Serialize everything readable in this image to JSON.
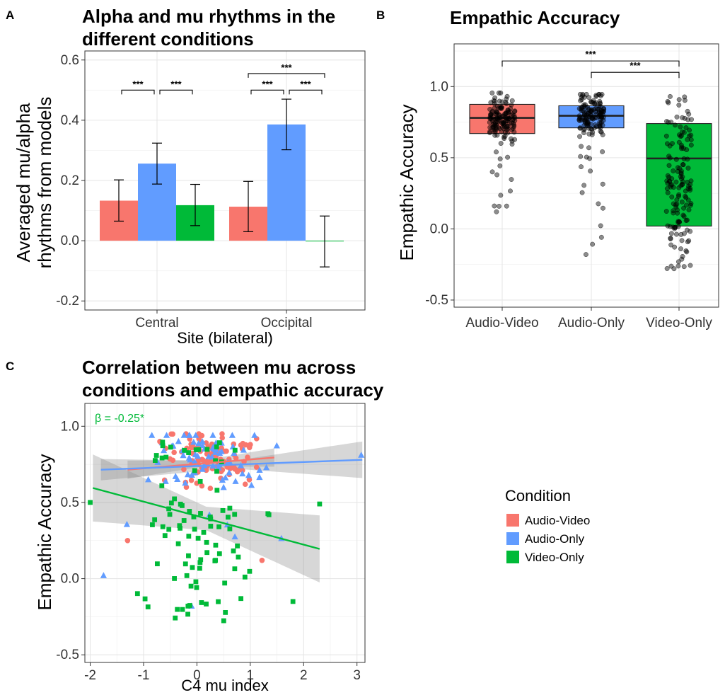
{
  "condition_colors": {
    "Audio-Video": "#F8766D",
    "Audio-Only": "#619CFF",
    "Video-Only": "#00BA38"
  },
  "legend": {
    "title": "Condition",
    "items": [
      "Audio-Video",
      "Audio-Only",
      "Video-Only"
    ]
  },
  "chart_data": [
    {
      "panel": "A",
      "type": "bar",
      "title_lines": [
        "Alpha and mu rhythms in the",
        "different conditions"
      ],
      "xlabel": "Site (bilateral)",
      "ylabel_lines": [
        "Averaged mu/alpha",
        "rhythms from models"
      ],
      "categories": [
        "Central",
        "Occipital"
      ],
      "ylim": [
        -0.23,
        0.63
      ],
      "yticks": [
        -0.2,
        0.0,
        0.2,
        0.4,
        0.6
      ],
      "ytick_labels": [
        "-0.2",
        "0.0",
        "0.2",
        "0.4",
        "0.6"
      ],
      "grid": true,
      "series": [
        {
          "name": "Audio-Video",
          "values": [
            0.133,
            0.113
          ],
          "err_low": [
            0.065,
            0.03
          ],
          "err_high": [
            0.202,
            0.197
          ]
        },
        {
          "name": "Audio-Only",
          "values": [
            0.256,
            0.386
          ],
          "err_low": [
            0.188,
            0.302
          ],
          "err_high": [
            0.324,
            0.47
          ]
        },
        {
          "name": "Video-Only",
          "values": [
            0.118,
            -0.002
          ],
          "err_low": [
            0.05,
            -0.087
          ],
          "err_high": [
            0.187,
            0.082
          ]
        }
      ],
      "significance": [
        {
          "category": 0,
          "from": 0,
          "to": 1,
          "label": "***",
          "y": 0.5
        },
        {
          "category": 0,
          "from": 1,
          "to": 2,
          "label": "***",
          "y": 0.5
        },
        {
          "category": 1,
          "from": 0,
          "to": 1,
          "label": "***",
          "y": 0.5
        },
        {
          "category": 1,
          "from": 1,
          "to": 2,
          "label": "***",
          "y": 0.5
        },
        {
          "category": 1,
          "from": 0,
          "to": 2,
          "label": "***",
          "y": 0.555
        }
      ]
    },
    {
      "panel": "B",
      "type": "box",
      "title": "Empathic Accuracy",
      "ylabel": "Empathic Accuracy",
      "xlabel": "",
      "categories": [
        "Audio-Video",
        "Audio-Only",
        "Video-Only"
      ],
      "ylim": [
        -0.55,
        1.3
      ],
      "yticks": [
        -0.5,
        0.0,
        0.5,
        1.0
      ],
      "ytick_labels": [
        "-0.5",
        "0.0",
        "0.5",
        "1.0"
      ],
      "grid": true,
      "boxes": [
        {
          "name": "Audio-Video",
          "min": 0.12,
          "q1": 0.67,
          "median": 0.78,
          "q3": 0.875,
          "max": 0.955
        },
        {
          "name": "Audio-Only",
          "min": -0.18,
          "q1": 0.71,
          "median": 0.795,
          "q3": 0.865,
          "max": 0.945
        },
        {
          "name": "Video-Only",
          "min": -0.28,
          "q1": 0.02,
          "median": 0.495,
          "q3": 0.74,
          "max": 0.93
        }
      ],
      "significance": [
        {
          "from": 0,
          "to": 2,
          "label": "***",
          "y": 1.18
        },
        {
          "from": 1,
          "to": 2,
          "label": "***",
          "y": 1.1
        }
      ]
    },
    {
      "panel": "C",
      "type": "scatter",
      "title_lines": [
        "Correlation between mu across",
        "conditions and empathic accuracy"
      ],
      "xlabel": "C4 mu index",
      "ylabel": "Empathic Accuracy",
      "xlim": [
        -2.1,
        3.15
      ],
      "ylim": [
        -0.55,
        1.15
      ],
      "xticks": [
        -2,
        -1,
        0,
        1,
        2,
        3
      ],
      "xtick_labels": [
        "-2",
        "-1",
        "0",
        "1",
        "2",
        "3"
      ],
      "yticks": [
        -0.5,
        0.0,
        0.5,
        1.0
      ],
      "ytick_labels": [
        "-0.5",
        "0.0",
        "0.5",
        "1.0"
      ],
      "grid": true,
      "annotation": {
        "text": "β = -0.25*",
        "color": "#00BA38"
      },
      "fits": [
        {
          "name": "Audio-Video",
          "x_range": [
            -1.3,
            1.45
          ],
          "y_start": 0.715,
          "y_end": 0.795,
          "ci_start": 0.06,
          "ci_end": 0.06
        },
        {
          "name": "Audio-Only",
          "x_range": [
            -1.8,
            3.1
          ],
          "y_start": 0.715,
          "y_end": 0.78,
          "ci_start": 0.07,
          "ci_end": 0.12
        },
        {
          "name": "Video-Only",
          "x_range": [
            -1.95,
            2.3
          ],
          "y_start": 0.595,
          "y_end": 0.195,
          "ci_start": 0.22,
          "ci_end": 0.22
        }
      ]
    }
  ]
}
